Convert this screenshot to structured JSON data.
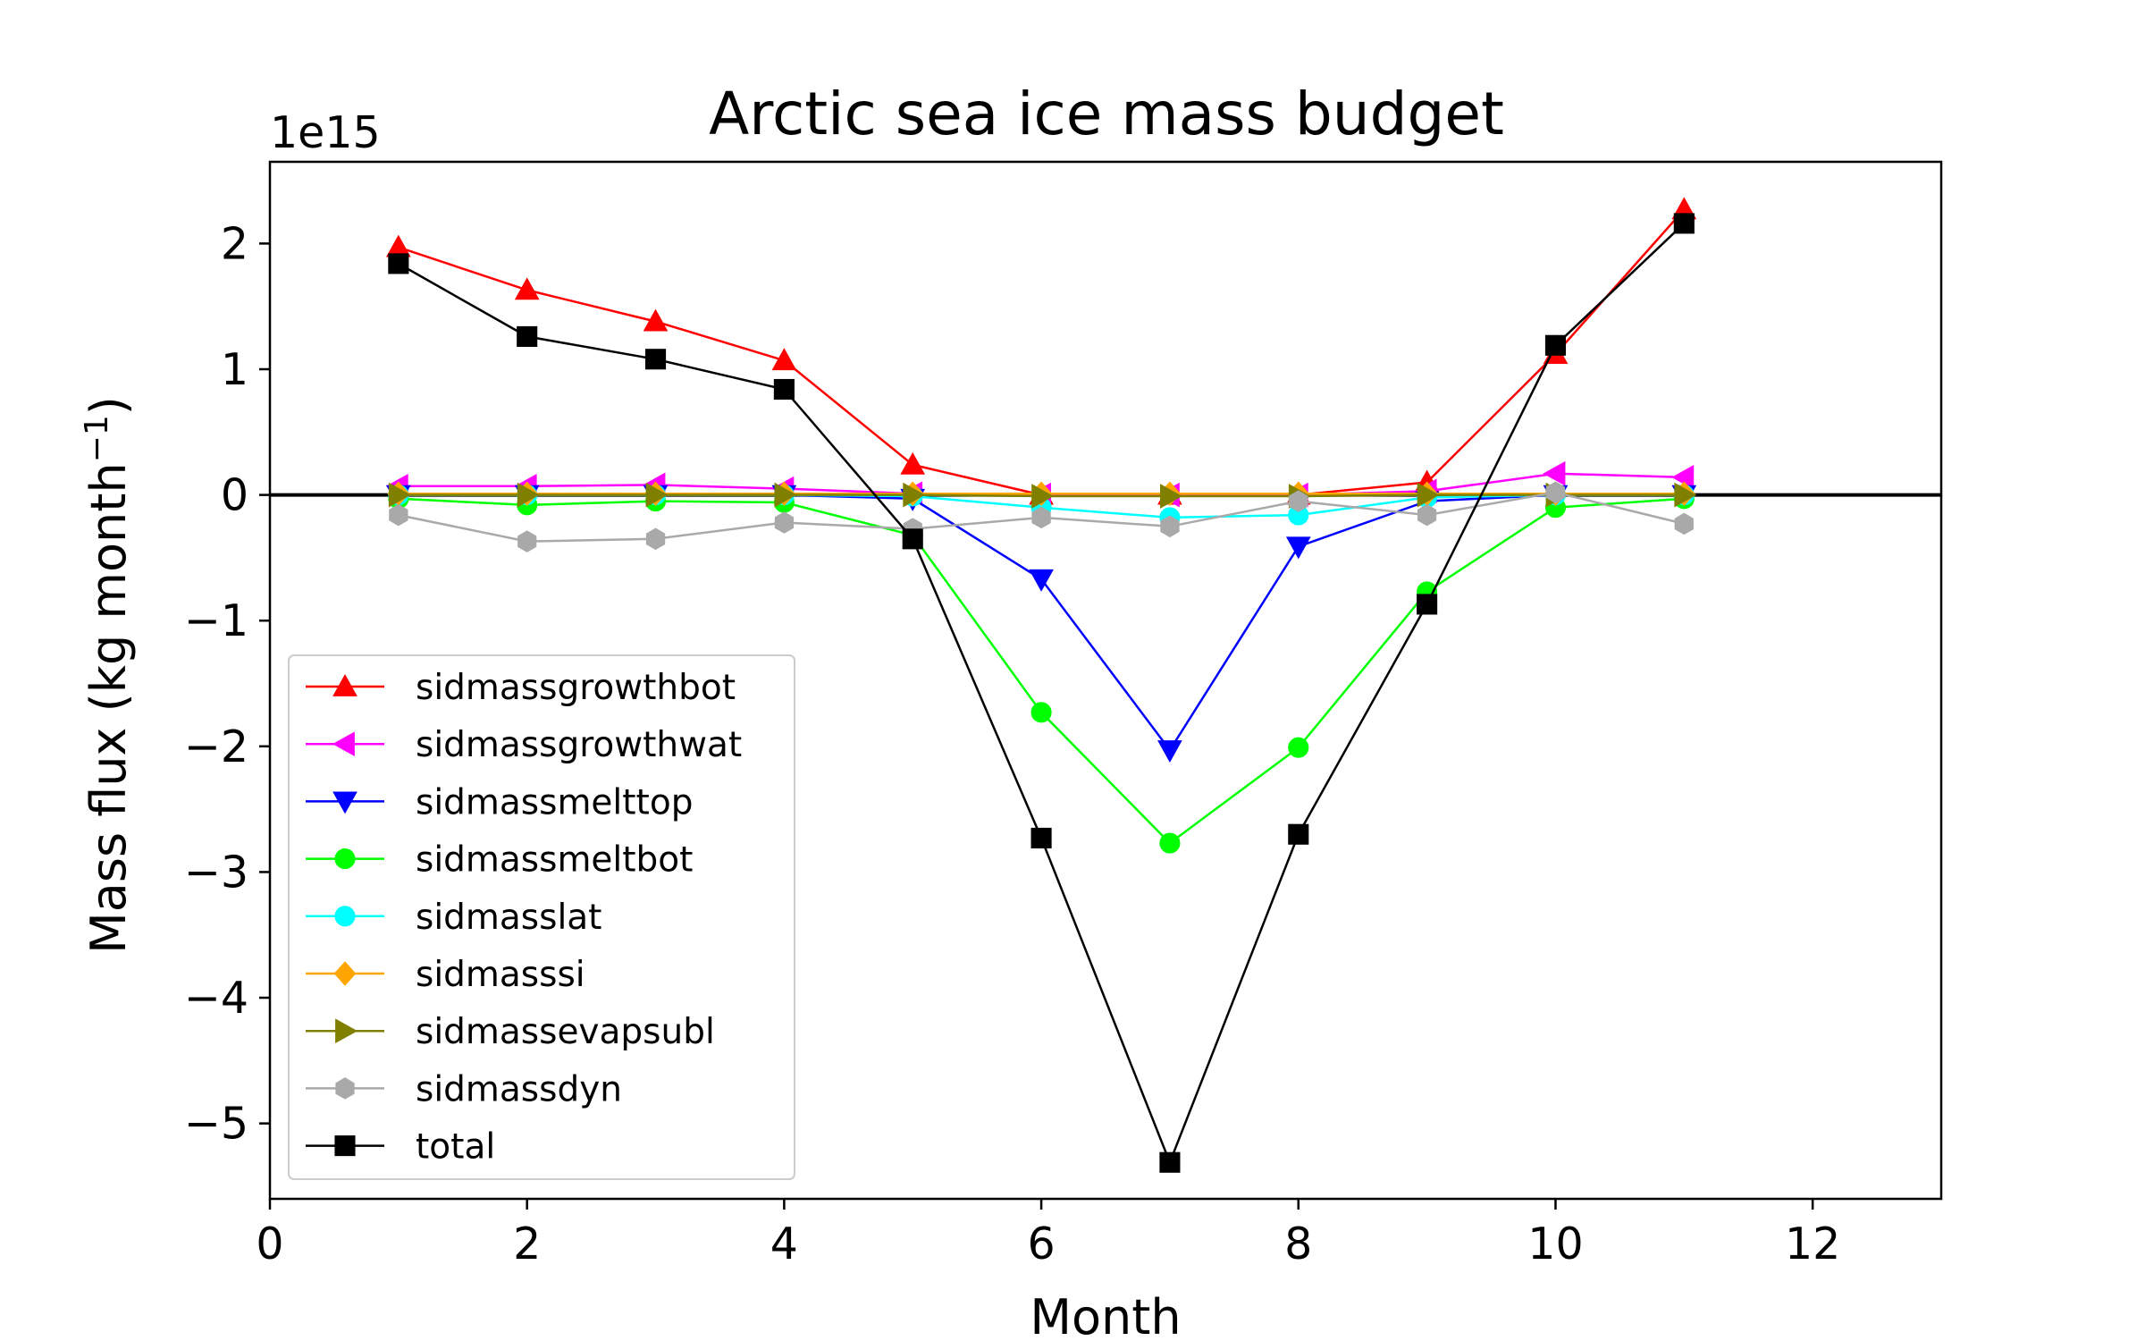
{
  "chart_data": {
    "type": "line",
    "title": "Arctic sea ice mass budget",
    "xlabel": "Month",
    "ylabel": "Mass flux (kg month",
    "ylabel_sup": "−1",
    "ylabel_close": ")",
    "y_offset_label": "1e15",
    "xlim": [
      0,
      13
    ],
    "ylim": [
      -5.6,
      2.65
    ],
    "x_ticks": [
      0,
      2,
      4,
      6,
      8,
      10,
      12
    ],
    "x_tick_labels": [
      "0",
      "2",
      "4",
      "6",
      "8",
      "10",
      "12"
    ],
    "y_ticks": [
      2,
      1,
      0,
      -1,
      -2,
      -3,
      -4,
      -5
    ],
    "y_tick_labels": [
      "2",
      "1",
      "0",
      "−1",
      "−2",
      "−3",
      "−4",
      "−5"
    ],
    "zero_line": true,
    "legend_position": "lower-left",
    "x": [
      1,
      2,
      3,
      4,
      5,
      6,
      7,
      8,
      9,
      10,
      11
    ],
    "series": [
      {
        "name": "sidmassgrowthbot",
        "color": "#ff0000",
        "marker": "triangle-up",
        "values": [
          1.97,
          1.63,
          1.38,
          1.07,
          0.24,
          0.0,
          0.0,
          0.0,
          0.1,
          1.12,
          2.27
        ]
      },
      {
        "name": "sidmassgrowthwat",
        "color": "#ff00ff",
        "marker": "triangle-left",
        "values": [
          0.07,
          0.07,
          0.08,
          0.05,
          0.01,
          0.0,
          0.0,
          0.0,
          0.03,
          0.17,
          0.14
        ]
      },
      {
        "name": "sidmassmelttop",
        "color": "#0000ff",
        "marker": "triangle-down",
        "values": [
          0.0,
          0.0,
          0.0,
          0.0,
          -0.03,
          -0.67,
          -2.03,
          -0.41,
          -0.05,
          0.0,
          0.0
        ]
      },
      {
        "name": "sidmassmeltbot",
        "color": "#00ff00",
        "marker": "circle",
        "values": [
          -0.03,
          -0.08,
          -0.05,
          -0.06,
          -0.32,
          -1.73,
          -2.77,
          -2.01,
          -0.77,
          -0.1,
          -0.03
        ]
      },
      {
        "name": "sidmasslat",
        "color": "#00ffff",
        "marker": "circle",
        "values": [
          0.0,
          0.0,
          0.0,
          0.0,
          -0.01,
          -0.1,
          -0.18,
          -0.16,
          -0.02,
          0.0,
          0.0
        ]
      },
      {
        "name": "sidmasssi",
        "color": "#ffa500",
        "marker": "diamond",
        "values": [
          0.01,
          0.01,
          0.01,
          0.01,
          0.01,
          0.01,
          0.01,
          0.01,
          0.01,
          0.01,
          0.01
        ]
      },
      {
        "name": "sidmassevapsubl",
        "color": "#808000",
        "marker": "triangle-right",
        "values": [
          0.0,
          0.0,
          0.0,
          0.0,
          0.0,
          -0.01,
          -0.01,
          -0.01,
          0.0,
          0.0,
          0.0
        ]
      },
      {
        "name": "sidmassdyn",
        "color": "#a9a9a9",
        "marker": "hexagon",
        "values": [
          -0.16,
          -0.37,
          -0.35,
          -0.22,
          -0.27,
          -0.18,
          -0.25,
          -0.05,
          -0.16,
          0.02,
          -0.23
        ]
      },
      {
        "name": "total",
        "color": "#000000",
        "marker": "square",
        "values": [
          1.84,
          1.26,
          1.08,
          0.84,
          -0.35,
          -2.73,
          -5.31,
          -2.7,
          -0.87,
          1.19,
          2.16
        ]
      }
    ]
  }
}
